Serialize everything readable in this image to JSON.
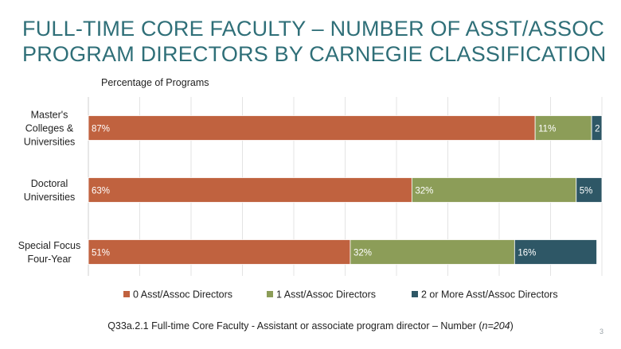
{
  "slide": {
    "title_line1": "FULL-TIME CORE FACULTY – NUMBER OF ASST/ASSOC",
    "title_line2": "PROGRAM DIRECTORS BY CARNEGIE CLASSIFICATION",
    "footnote_prefix": "Q33a.2.1 Full-time Core Faculty - Assistant or associate program director – Number (",
    "footnote_n": "n=204",
    "footnote_suffix": ")",
    "page_number": "3"
  },
  "chart_data": {
    "type": "bar",
    "orientation": "horizontal",
    "stacked": true,
    "subtitle": "Percentage of Programs",
    "categories": [
      [
        "Master's",
        "Colleges &",
        "Universities"
      ],
      [
        "Doctoral",
        "Universities"
      ],
      [
        "Special Focus",
        "Four-Year"
      ]
    ],
    "series": [
      {
        "name": "0 Asst/Assoc Directors",
        "color": "#c0623f",
        "values": [
          87,
          63,
          51
        ],
        "labels": [
          "87%",
          "63%",
          "51%"
        ]
      },
      {
        "name": "1 Asst/Assoc Directors",
        "color": "#8c9d58",
        "values": [
          11,
          32,
          32
        ],
        "labels": [
          "11%",
          "32%",
          "32%"
        ]
      },
      {
        "name": "2 or More Asst/Assoc Directors",
        "color": "#2e5766",
        "values": [
          2,
          5,
          16
        ],
        "labels": [
          "2",
          "5%",
          "16%"
        ]
      }
    ],
    "xlim": [
      0,
      100
    ],
    "grid": true,
    "legend_position": "bottom"
  }
}
